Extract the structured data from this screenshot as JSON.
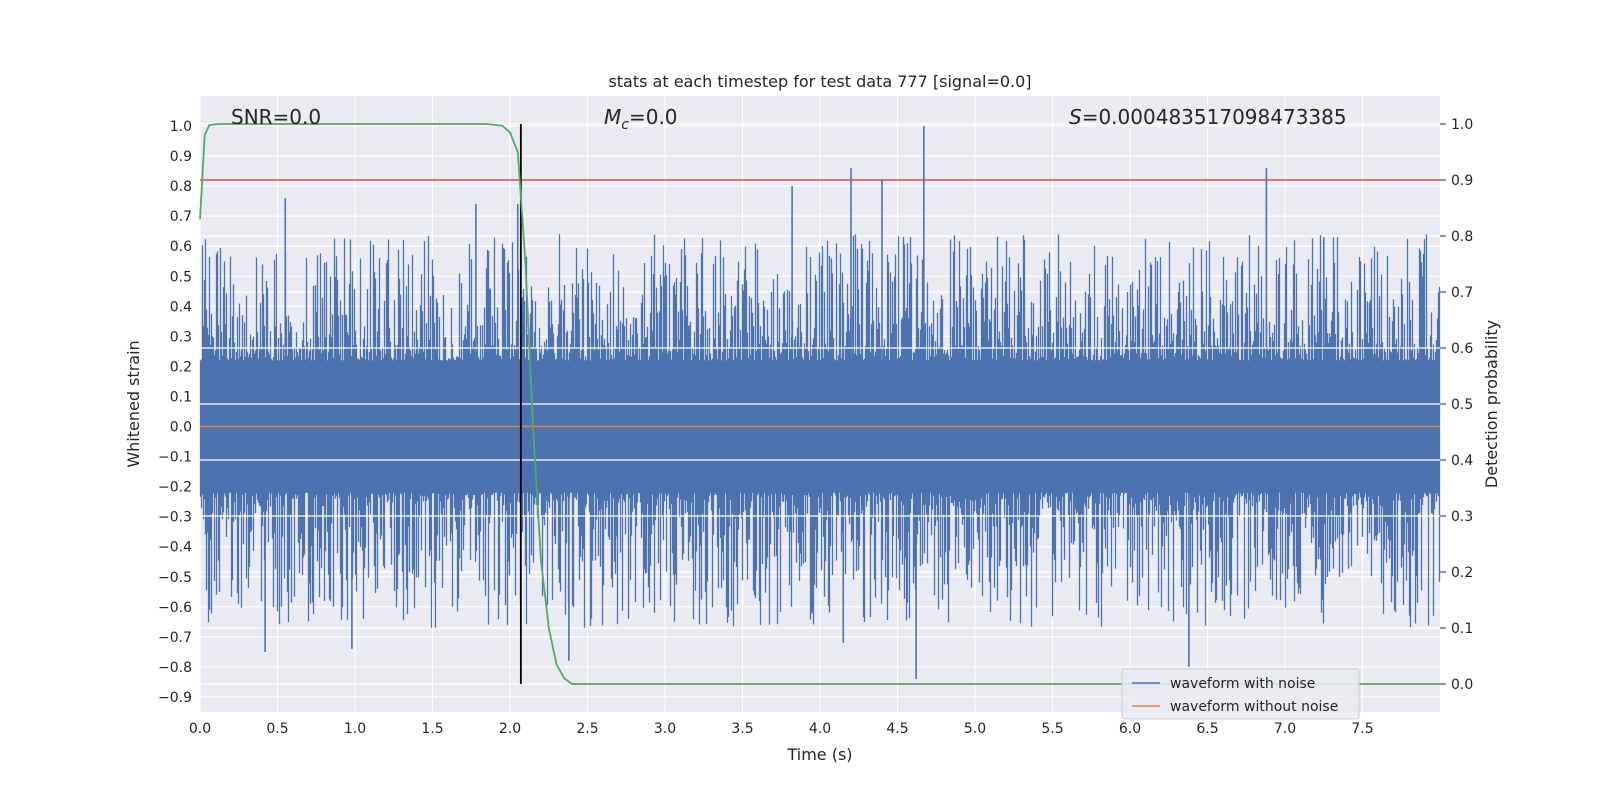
{
  "chart_data": {
    "type": "line",
    "title": "stats at each timestep for test data 777 [signal=0.0]",
    "xlabel": "Time (s)",
    "ylabel": "Whitened strain",
    "y2label": "Detection probability",
    "xlim": [
      0.0,
      8.0
    ],
    "ylim": [
      -0.95,
      1.1
    ],
    "y2lim": [
      -0.05,
      1.05
    ],
    "xticks": [
      0.0,
      0.5,
      1.0,
      1.5,
      2.0,
      2.5,
      3.0,
      3.5,
      4.0,
      4.5,
      5.0,
      5.5,
      6.0,
      6.5,
      7.0,
      7.5
    ],
    "yticks": [
      1.0,
      0.9,
      0.8,
      0.7,
      0.6,
      0.5,
      0.4,
      0.3,
      0.2,
      0.1,
      0.0,
      -0.1,
      -0.2,
      -0.3,
      -0.4,
      -0.5,
      -0.6,
      -0.7,
      -0.8,
      -0.9
    ],
    "y2ticks": [
      1.0,
      0.9,
      0.8,
      0.7,
      0.6,
      0.5,
      0.4,
      0.3,
      0.2,
      0.1,
      0.0
    ],
    "grid": true,
    "legend_position": "lower-right",
    "annotations": {
      "snr": "SNR=0.0",
      "mc_symbol": "M",
      "mc_sub": "c",
      "mc_value": "=0.0",
      "s_symbol": "S",
      "s_value": "=0.000483517098473385"
    },
    "series": [
      {
        "name": "waveform with noise",
        "color": "#4c72b0",
        "typical_envelope": [
          -0.55,
          0.5
        ],
        "spikes": [
          {
            "x": 0.42,
            "y": -0.75
          },
          {
            "x": 0.55,
            "y": 0.76
          },
          {
            "x": 0.98,
            "y": -0.74
          },
          {
            "x": 1.78,
            "y": 0.74
          },
          {
            "x": 2.05,
            "y": 0.74
          },
          {
            "x": 2.38,
            "y": -0.78
          },
          {
            "x": 3.82,
            "y": 0.8
          },
          {
            "x": 4.2,
            "y": 0.86
          },
          {
            "x": 4.15,
            "y": -0.72
          },
          {
            "x": 4.4,
            "y": 0.82
          },
          {
            "x": 4.62,
            "y": -0.84
          },
          {
            "x": 4.67,
            "y": 1.0
          },
          {
            "x": 6.38,
            "y": -0.8
          },
          {
            "x": 6.88,
            "y": 0.86
          },
          {
            "x": 7.25,
            "y": 0.63
          }
        ]
      },
      {
        "name": "waveform without noise",
        "color": "#dd8452",
        "x": [
          0.0,
          8.0
        ],
        "y": [
          0.0,
          0.0
        ]
      },
      {
        "name": "",
        "color": "#55a868",
        "axis": "right",
        "x": [
          0.0,
          0.03,
          0.06,
          0.12,
          0.5,
          1.0,
          1.5,
          1.85,
          1.95,
          2.0,
          2.05,
          2.1,
          2.15,
          2.2,
          2.25,
          2.3,
          2.35,
          2.4,
          8.0
        ],
        "y": [
          0.83,
          0.98,
          0.998,
          1.0,
          1.0,
          1.0,
          1.0,
          1.0,
          0.997,
          0.985,
          0.95,
          0.75,
          0.45,
          0.22,
          0.1,
          0.035,
          0.01,
          0.0,
          0.0
        ]
      }
    ],
    "threshold_line": {
      "axis": "right",
      "y": 0.9,
      "color": "#c44e52"
    },
    "vertical_line": {
      "x": 2.07,
      "color": "#000000"
    }
  }
}
